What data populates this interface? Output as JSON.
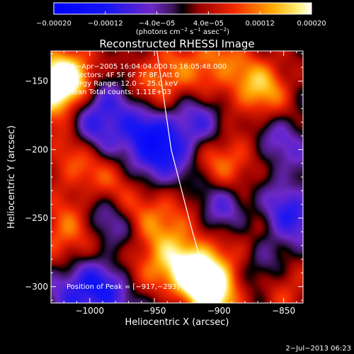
{
  "chart_data": {
    "type": "heatmap",
    "title": "Reconstructed RHESSI Image",
    "xlabel": "Heliocentric X (arcsec)",
    "ylabel": "Heliocentric Y (arcsec)",
    "xlim": [
      -1030,
      -835
    ],
    "ylim": [
      -312,
      -128
    ],
    "x_ticks": [
      -1000,
      -950,
      -900,
      -850
    ],
    "x_tick_labels": [
      "−1000",
      "−950",
      "−900",
      "−850"
    ],
    "y_ticks": [
      -300,
      -250,
      -200,
      -150
    ],
    "y_tick_labels": [
      "−300",
      "−250",
      "−200",
      "−150"
    ],
    "colorbar": {
      "range": [
        -0.0002,
        0.0002
      ],
      "ticks": [
        -0.0002,
        -0.00012,
        -4e-05,
        4e-05,
        0.00012,
        0.0002
      ],
      "tick_labels": [
        "−0.00020",
        "−0.00012",
        "−4.0e−05",
        "4.0e−05",
        "0.00012",
        "0.00020"
      ],
      "units_prefix": "(photons cm",
      "units_exp1": "−2",
      "units_mid": " s",
      "units_exp2": "−1",
      "units_mid2": " asec",
      "units_exp3": "−2",
      "units_suffix": ")"
    },
    "annotations": {
      "line1": "16−Apr−2005 16:04:04.000 to 16:05:48.000",
      "line2": "Detectors: 4F 5F 6F 7F 8F, Att 0",
      "line3": "Energy Range: 12.0 − 25.0 keV",
      "line4": "Clean     Total counts: 1.11E+03",
      "peak": "Position of Peak = [−917,−293]"
    },
    "peak": [
      -917,
      -293
    ],
    "features": [
      {
        "x": -1025,
        "y": -155,
        "value": 0.00022
      },
      {
        "x": -1010,
        "y": -150,
        "value": 0.00014
      },
      {
        "x": -1010,
        "y": -205,
        "value": 0.00013
      },
      {
        "x": -985,
        "y": -215,
        "value": 0.00011
      },
      {
        "x": -1018,
        "y": -260,
        "value": 0.00012
      },
      {
        "x": -990,
        "y": -280,
        "value": 0.0001
      },
      {
        "x": -945,
        "y": -150,
        "value": 0.00012
      },
      {
        "x": -905,
        "y": -135,
        "value": 0.00011
      },
      {
        "x": -868,
        "y": -155,
        "value": 0.00015
      },
      {
        "x": -900,
        "y": -205,
        "value": 0.00012
      },
      {
        "x": -870,
        "y": -210,
        "value": 9e-05
      },
      {
        "x": -960,
        "y": -240,
        "value": 0.0001
      },
      {
        "x": -935,
        "y": -255,
        "value": 9e-05
      },
      {
        "x": -875,
        "y": -260,
        "value": 0.00011
      },
      {
        "x": -950,
        "y": -290,
        "value": 0.00012
      },
      {
        "x": -917,
        "y": -293,
        "value": 0.00024
      },
      {
        "x": -900,
        "y": -305,
        "value": 0.00014
      },
      {
        "x": -850,
        "y": -300,
        "value": 0.0001
      },
      {
        "x": -1000,
        "y": -165,
        "value": -0.00016
      },
      {
        "x": -995,
        "y": -200,
        "value": -0.00012
      },
      {
        "x": -955,
        "y": -190,
        "value": -0.00012
      },
      {
        "x": -948,
        "y": -215,
        "value": -9e-05
      },
      {
        "x": -985,
        "y": -255,
        "value": -0.00011
      },
      {
        "x": -1005,
        "y": -300,
        "value": -0.00011
      },
      {
        "x": -985,
        "y": -295,
        "value": -0.0001
      },
      {
        "x": -915,
        "y": -185,
        "value": -0.0001
      },
      {
        "x": -860,
        "y": -200,
        "value": -0.00011
      },
      {
        "x": -895,
        "y": -245,
        "value": -0.0001
      },
      {
        "x": -850,
        "y": -250,
        "value": -0.00012
      },
      {
        "x": -870,
        "y": -290,
        "value": -0.0001
      },
      {
        "x": -940,
        "y": -310,
        "value": -8e-05
      }
    ],
    "limb_line": [
      [
        -948,
        -128
      ],
      [
        -937,
        -200
      ],
      [
        -922,
        -255
      ],
      [
        -905,
        -312
      ]
    ],
    "grid": false
  },
  "footer": {
    "timestamp": "2−Jul−2013 06:23"
  }
}
